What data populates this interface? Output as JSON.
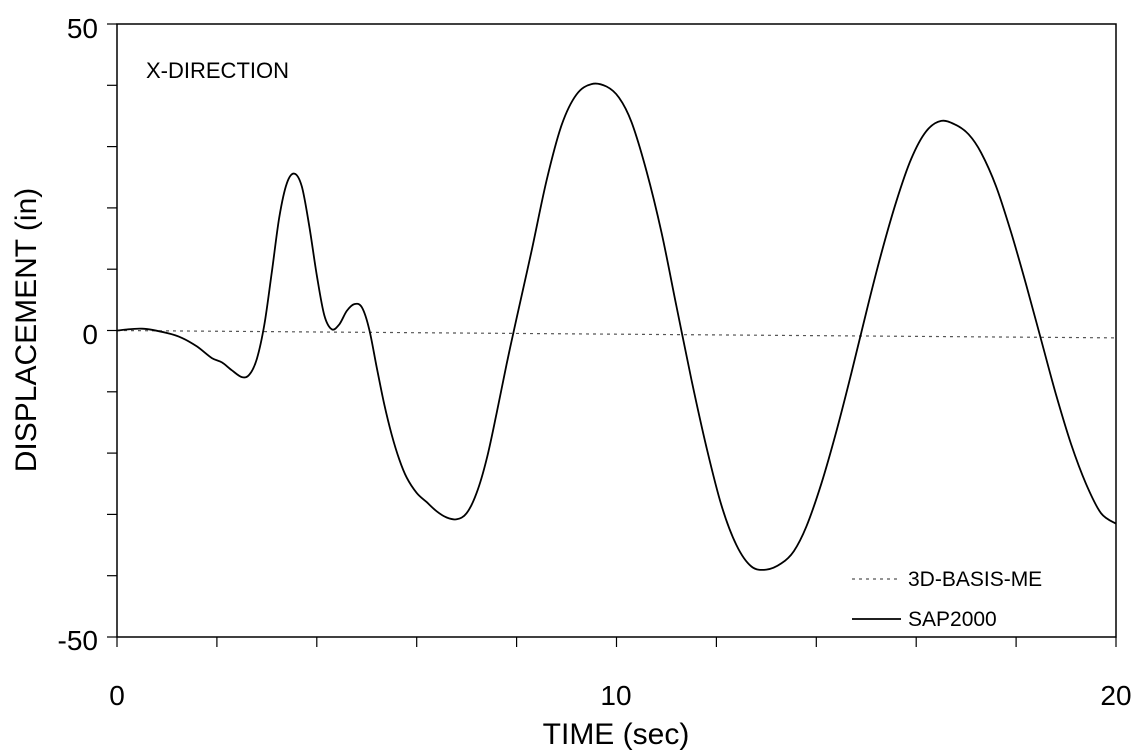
{
  "chart_data": {
    "type": "line",
    "annotation": "X-DIRECTION",
    "xlabel": "TIME (sec)",
    "ylabel": "DISPLACEMENT (in)",
    "xlim": [
      0,
      20
    ],
    "ylim": [
      -50,
      50
    ],
    "x_tick_labels": [
      "0",
      "10",
      "20"
    ],
    "y_tick_labels": [
      "50",
      "0",
      "-50"
    ],
    "grid": false,
    "legend_position": "bottom-right",
    "series": [
      {
        "name": "3D-BASIS-ME",
        "style": "dotted",
        "color": "#555555",
        "x": [
          0,
          20
        ],
        "y": [
          0,
          -1.2
        ]
      },
      {
        "name": "SAP2000",
        "style": "solid",
        "color": "#000000",
        "x": [
          0,
          0.5,
          1.0,
          1.3,
          1.6,
          1.9,
          2.1,
          2.3,
          2.5,
          2.65,
          2.8,
          2.95,
          3.1,
          3.25,
          3.4,
          3.55,
          3.7,
          3.85,
          4.0,
          4.15,
          4.3,
          4.45,
          4.6,
          4.75,
          4.9,
          5.05,
          5.2,
          5.35,
          5.5,
          5.65,
          5.8,
          6.0,
          6.2,
          6.4,
          6.6,
          6.8,
          7.0,
          7.2,
          7.4,
          7.6,
          7.8,
          8.0,
          8.3,
          8.6,
          8.9,
          9.2,
          9.5,
          9.8,
          10.05,
          10.3,
          10.6,
          10.9,
          11.2,
          11.5,
          11.8,
          12.1,
          12.4,
          12.7,
          13.0,
          13.3,
          13.55,
          13.8,
          14.1,
          14.4,
          14.7,
          15.0,
          15.3,
          15.6,
          15.9,
          16.2,
          16.5,
          16.8,
          17.05,
          17.3,
          17.6,
          17.9,
          18.2,
          18.5,
          18.8,
          19.1,
          19.4,
          19.7,
          20.0
        ],
        "y": [
          0,
          0.3,
          -0.4,
          -1.2,
          -2.6,
          -4.5,
          -5.2,
          -6.5,
          -7.6,
          -7.2,
          -4.6,
          1.0,
          9.5,
          18.5,
          24.0,
          25.6,
          23.5,
          17.0,
          9.0,
          2.5,
          0.2,
          1.0,
          3.2,
          4.3,
          3.8,
          0.2,
          -6.0,
          -12.0,
          -17.0,
          -21.0,
          -24.0,
          -26.5,
          -28.0,
          -29.5,
          -30.5,
          -30.8,
          -29.8,
          -26.5,
          -21.0,
          -13.5,
          -5.5,
          2.0,
          13.0,
          24.5,
          33.5,
          38.5,
          40.2,
          39.8,
          38.0,
          34.0,
          26.0,
          16.0,
          4.0,
          -8.0,
          -19.0,
          -28.5,
          -35.0,
          -38.5,
          -39.0,
          -38.0,
          -36.0,
          -32.0,
          -25.0,
          -16.5,
          -7.0,
          3.0,
          12.5,
          21.0,
          28.0,
          32.5,
          34.2,
          33.5,
          32.0,
          29.0,
          23.5,
          16.0,
          7.5,
          -1.5,
          -10.5,
          -18.5,
          -25.0,
          -29.8,
          -31.5
        ]
      }
    ]
  }
}
